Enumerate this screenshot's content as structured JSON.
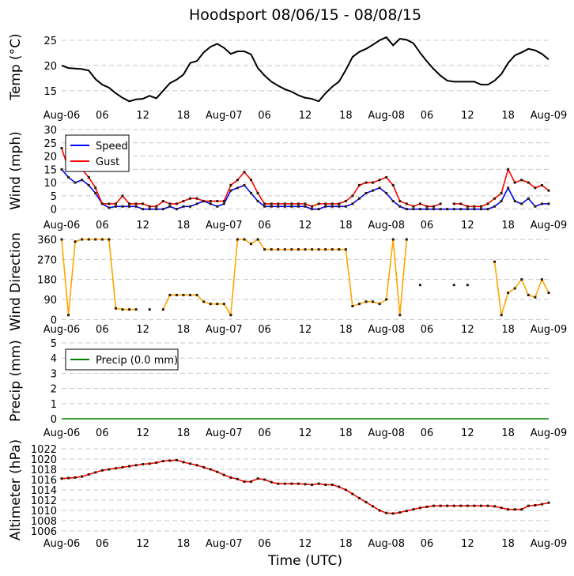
{
  "title": "Hoodsport 08/06/15 - 08/08/15",
  "xlabel": "Time (UTC)",
  "chart_data": [
    {
      "type": "line",
      "ylabel": "Temp (°C)",
      "ylim": [
        12,
        27.5
      ],
      "yticks": [
        15,
        20,
        25
      ],
      "grid": true,
      "x_hours_from_aug06": "hourly 0-72",
      "xticks": [
        "Aug-06",
        "06",
        "12",
        "18",
        "Aug-07",
        "06",
        "12",
        "18",
        "Aug-08",
        "06",
        "12",
        "18",
        "Aug-09"
      ],
      "series": [
        {
          "color": "#000000",
          "values": [
            20,
            19.5,
            19.4,
            19.3,
            19,
            17.3,
            16.2,
            15.6,
            14.5,
            13.6,
            12.9,
            13.3,
            13.4,
            14,
            13.5,
            15,
            16.5,
            17.2,
            18.2,
            20.5,
            20.9,
            22.6,
            23.7,
            24.3,
            23.5,
            22.3,
            22.8,
            22.8,
            22.2,
            19.5,
            18,
            16.8,
            16,
            15.3,
            14.8,
            14.1,
            13.6,
            13.4,
            12.9,
            14.5,
            15.8,
            16.8,
            19.1,
            21.7,
            22.7,
            23.3,
            24.1,
            25,
            25.6,
            24,
            25.3,
            25.1,
            24.4,
            22.5,
            20.8,
            19.3,
            18,
            17,
            16.8,
            16.8,
            16.8,
            16.8,
            16.2,
            16.2,
            17,
            18.3,
            20.5,
            22,
            22.6,
            23.3,
            23,
            22.3,
            21.2
          ]
        }
      ]
    },
    {
      "type": "line",
      "ylabel": "Wind (mph)",
      "ylim": [
        -1,
        30
      ],
      "yticks": [
        0,
        5,
        10,
        15,
        20,
        25,
        30
      ],
      "grid": true,
      "legend": "top-left",
      "xticks": [
        "Aug-06",
        "06",
        "12",
        "18",
        "Aug-07",
        "06",
        "12",
        "18",
        "Aug-08",
        "06",
        "12",
        "18",
        "Aug-09"
      ],
      "series": [
        {
          "name": "Speed",
          "color": "#0000ff",
          "values": [
            15,
            12,
            10,
            11,
            9,
            6,
            2,
            0.5,
            1,
            1,
            1,
            1,
            0,
            0,
            0,
            0,
            1,
            0,
            1,
            1,
            2,
            3,
            2,
            1,
            2,
            7,
            8,
            9,
            6,
            3,
            1,
            1,
            1,
            1,
            1,
            1,
            1,
            0,
            0,
            1,
            1,
            1,
            1,
            2,
            4,
            6,
            7,
            8,
            6,
            3,
            1,
            0,
            0,
            0,
            0,
            0,
            0,
            0,
            0,
            0,
            0,
            0,
            0,
            0,
            1,
            3,
            8,
            3,
            2,
            4,
            1,
            2,
            2
          ]
        },
        {
          "name": "Gust",
          "color": "#ff0000",
          "values": [
            23,
            15,
            16,
            15,
            12,
            8,
            2,
            2,
            2,
            5,
            2,
            2,
            2,
            1,
            1,
            3,
            2,
            2,
            3,
            4,
            4,
            3,
            3,
            3,
            3,
            9,
            11,
            14,
            11,
            6,
            2,
            2,
            2,
            2,
            2,
            2,
            2,
            1,
            2,
            2,
            2,
            2,
            3,
            5,
            9,
            10,
            10,
            11,
            12,
            9,
            3,
            2,
            1,
            2,
            1,
            1,
            2,
            null,
            2,
            2,
            1,
            1,
            1,
            2,
            4,
            6,
            15,
            10,
            11,
            10,
            8,
            9,
            7
          ]
        }
      ]
    },
    {
      "type": "line",
      "ylabel": "Wind Direction",
      "ylim": [
        -20,
        360
      ],
      "yticks": [
        0,
        90,
        180,
        270,
        360
      ],
      "grid": true,
      "xticks": [
        "Aug-06",
        "06",
        "12",
        "18",
        "Aug-07",
        "06",
        "12",
        "18",
        "Aug-08",
        "06",
        "12",
        "18",
        "Aug-09"
      ],
      "series": [
        {
          "color": "#ffa500",
          "values": [
            360,
            20,
            350,
            360,
            360,
            360,
            360,
            360,
            50,
            45,
            45,
            45,
            null,
            45,
            null,
            45,
            110,
            110,
            110,
            110,
            110,
            80,
            70,
            70,
            70,
            20,
            360,
            360,
            340,
            360,
            315,
            315,
            315,
            315,
            315,
            315,
            315,
            315,
            315,
            315,
            315,
            315,
            315,
            60,
            70,
            80,
            80,
            70,
            90,
            360,
            20,
            360,
            null,
            155,
            null,
            null,
            null,
            null,
            155,
            null,
            155,
            null,
            null,
            null,
            260,
            20,
            120,
            140,
            180,
            110,
            100,
            180,
            120
          ]
        }
      ]
    },
    {
      "type": "line",
      "ylabel": "Precip (mm)",
      "ylim": [
        0,
        5
      ],
      "yticks": [
        0,
        1,
        2,
        3,
        4,
        5
      ],
      "grid": true,
      "legend": "top-left",
      "xticks": [
        "Aug-06",
        "06",
        "12",
        "18",
        "Aug-07",
        "06",
        "12",
        "18",
        "Aug-08",
        "06",
        "12",
        "18",
        "Aug-09"
      ],
      "series": [
        {
          "name": "Precip (0.0 mm)",
          "color": "#008000",
          "values": [
            0,
            0,
            0,
            0,
            0,
            0,
            0,
            0,
            0,
            0,
            0,
            0,
            0,
            0,
            0,
            0,
            0,
            0,
            0,
            0,
            0,
            0,
            0,
            0,
            0,
            0,
            0,
            0,
            0,
            0,
            0,
            0,
            0,
            0,
            0,
            0,
            0,
            0,
            0,
            0,
            0,
            0,
            0,
            0,
            0,
            0,
            0,
            0,
            0,
            0,
            0,
            0,
            0,
            0,
            0,
            0,
            0,
            0,
            0,
            0,
            0,
            0,
            0,
            0,
            0,
            0,
            0,
            0,
            0,
            0,
            0,
            0,
            0
          ]
        }
      ]
    },
    {
      "type": "line",
      "ylabel": "Altimeter (hPa)",
      "ylim": [
        1006,
        1022
      ],
      "yticks": [
        1006,
        1008,
        1010,
        1012,
        1014,
        1016,
        1018,
        1020,
        1022
      ],
      "grid": true,
      "xticks": [
        "Aug-06",
        "06",
        "12",
        "18",
        "Aug-07",
        "06",
        "12",
        "18",
        "Aug-08",
        "06",
        "12",
        "18",
        "Aug-09"
      ],
      "series": [
        {
          "color": "#ff0000",
          "values": [
            1016.2,
            1016.3,
            1016.4,
            1016.6,
            1017,
            1017.4,
            1017.8,
            1018,
            1018.2,
            1018.4,
            1018.6,
            1018.8,
            1019,
            1019.1,
            1019.3,
            1019.6,
            1019.7,
            1019.8,
            1019.4,
            1019.1,
            1018.8,
            1018.4,
            1018,
            1017.5,
            1016.9,
            1016.4,
            1016.1,
            1015.6,
            1015.6,
            1016.2,
            1016,
            1015.5,
            1015.2,
            1015.2,
            1015.2,
            1015.2,
            1015.1,
            1015,
            1015.2,
            1015,
            1015,
            1014.6,
            1014,
            1013.2,
            1012.4,
            1011.6,
            1010.8,
            1010,
            1009.5,
            1009.4,
            1009.6,
            1009.9,
            1010.2,
            1010.5,
            1010.7,
            1010.9,
            1010.9,
            1010.9,
            1010.9,
            1010.9,
            1010.9,
            1010.9,
            1010.9,
            1010.9,
            1010.8,
            1010.5,
            1010.2,
            1010.2,
            1010.2,
            1010.9,
            1011,
            1011.2,
            1011.5
          ]
        }
      ]
    }
  ]
}
